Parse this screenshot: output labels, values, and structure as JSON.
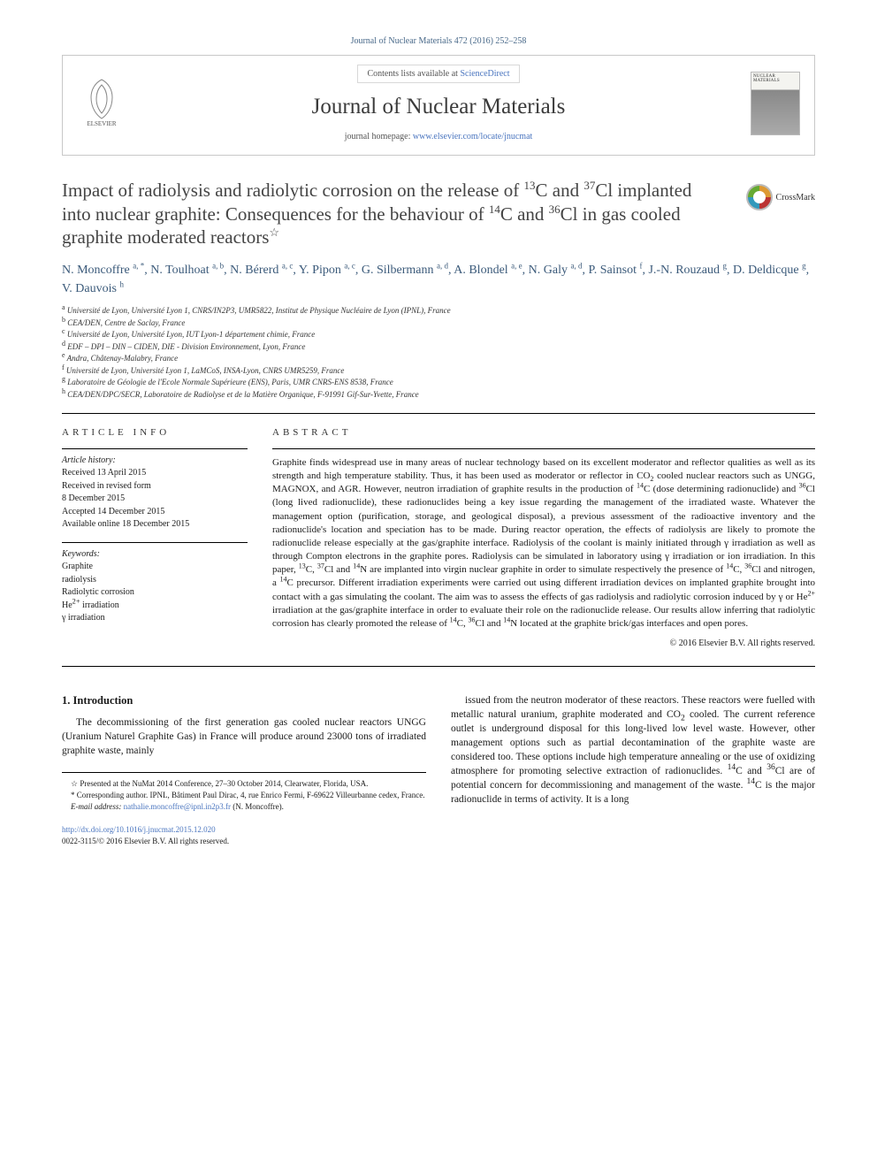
{
  "citation": "Journal of Nuclear Materials 472 (2016) 252–258",
  "header": {
    "contents_prefix": "Contents lists available at ",
    "contents_link": "ScienceDirect",
    "journal_name": "Journal of Nuclear Materials",
    "homepage_prefix": "journal homepage: ",
    "homepage_url": "www.elsevier.com/locate/jnucmat",
    "publisher_label": "ELSEVIER",
    "cover_label": "NUCLEAR MATERIALS"
  },
  "crossmark_label": "CrossMark",
  "title_html": "Impact of radiolysis and radiolytic corrosion on the release of <sup>13</sup>C and <sup>37</sup>Cl implanted into nuclear graphite: Consequences for the behaviour of <sup>14</sup>C and <sup>36</sup>Cl in gas cooled graphite moderated reactors<sup>☆</sup>",
  "authors_html": "N. Moncoffre <sup>a, *</sup>, N. Toulhoat <sup>a, b</sup>, N. Bérerd <sup>a, c</sup>, Y. Pipon <sup>a, c</sup>, G. Silbermann <sup>a, d</sup>, A. Blondel <sup>a, e</sup>, N. Galy <sup>a, d</sup>, P. Sainsot <sup>f</sup>, J.-N. Rouzaud <sup>g</sup>, D. Deldicque <sup>g</sup>, V. Dauvois <sup>h</sup>",
  "affiliations": [
    {
      "key": "a",
      "text": "Université de Lyon, Université Lyon 1, CNRS/IN2P3, UMR5822, Institut de Physique Nucléaire de Lyon (IPNL), France"
    },
    {
      "key": "b",
      "text": "CEA/DEN, Centre de Saclay, France"
    },
    {
      "key": "c",
      "text": "Université de Lyon, Université Lyon, IUT Lyon-1 département chimie, France"
    },
    {
      "key": "d",
      "text": "EDF – DPI – DIN – CIDEN, DIE - Division Environnement, Lyon, France"
    },
    {
      "key": "e",
      "text": "Andra, Châtenay-Malabry, France"
    },
    {
      "key": "f",
      "text": "Université de Lyon, Université Lyon 1, LaMCoS, INSA-Lyon, CNRS UMR5259, France"
    },
    {
      "key": "g",
      "text": "Laboratoire de Géologie de l'Ecole Normale Supérieure (ENS), Paris, UMR CNRS-ENS 8538, France"
    },
    {
      "key": "h",
      "text": "CEA/DEN/DPC/SECR, Laboratoire de Radiolyse et de la Matière Organique, F-91991 Gif-Sur-Yvette, France"
    }
  ],
  "article_info": {
    "heading": "ARTICLE INFO",
    "history_label": "Article history:",
    "history": [
      "Received 13 April 2015",
      "Received in revised form",
      "8 December 2015",
      "Accepted 14 December 2015",
      "Available online 18 December 2015"
    ],
    "keywords_label": "Keywords:",
    "keywords": [
      "Graphite",
      "radiolysis",
      "Radiolytic corrosion",
      "He2+ irradiation",
      "γ irradiation"
    ]
  },
  "abstract": {
    "heading": "ABSTRACT",
    "text_html": "Graphite finds widespread use in many areas of nuclear technology based on its excellent moderator and reflector qualities as well as its strength and high temperature stability. Thus, it has been used as moderator or reflector in CO<sub>2</sub> cooled nuclear reactors such as UNGG, MAGNOX, and AGR. However, neutron irradiation of graphite results in the production of <sup>14</sup>C (dose determining radionuclide) and <sup>36</sup>Cl (long lived radionuclide), these radionuclides being a key issue regarding the management of the irradiated waste. Whatever the management option (purification, storage, and geological disposal), a previous assessment of the radioactive inventory and the radionuclide's location and speciation has to be made. During reactor operation, the effects of radiolysis are likely to promote the radionuclide release especially at the gas/graphite interface. Radiolysis of the coolant is mainly initiated through γ irradiation as well as through Compton electrons in the graphite pores. Radiolysis can be simulated in laboratory using γ irradiation or ion irradiation. In this paper, <sup>13</sup>C, <sup>37</sup>Cl and <sup>14</sup>N are implanted into virgin nuclear graphite in order to simulate respectively the presence of <sup>14</sup>C, <sup>36</sup>Cl and nitrogen, a <sup>14</sup>C precursor. Different irradiation experiments were carried out using different irradiation devices on implanted graphite brought into contact with a gas simulating the coolant. The aim was to assess the effects of gas radiolysis and radiolytic corrosion induced by γ or He<sup>2+</sup> irradiation at the gas/graphite interface in order to evaluate their role on the radionuclide release. Our results allow inferring that radiolytic corrosion has clearly promoted the release of <sup>14</sup>C, <sup>36</sup>Cl and <sup>14</sup>N located at the graphite brick/gas interfaces and open pores.",
    "copyright": "© 2016 Elsevier B.V. All rights reserved."
  },
  "body": {
    "section_heading": "1. Introduction",
    "col1_html": "The decommissioning of the first generation gas cooled nuclear reactors UNGG (Uranium Naturel Graphite Gas) in France will produce around 23000 tons of irradiated graphite waste, mainly",
    "col2_html": "issued from the neutron moderator of these reactors. These reactors were fuelled with metallic natural uranium, graphite moderated and CO<sub>2</sub> cooled. The current reference outlet is underground disposal for this long-lived low level waste. However, other management options such as partial decontamination of the graphite waste are considered too. These options include high temperature annealing or the use of oxidizing atmosphere for promoting selective extraction of radionuclides. <sup>14</sup>C and <sup>36</sup>Cl are of potential concern for decommissioning and management of the waste. <sup>14</sup>C is the major radionuclide in terms of activity. It is a long"
  },
  "footnotes": {
    "star": "☆ Presented at the NuMat 2014 Conference, 27–30 October 2014, Clearwater, Florida, USA.",
    "corr": "* Corresponding author. IPNL, Bâtiment Paul Dirac, 4, rue Enrico Fermi, F-69622 Villeurbanne cedex, France.",
    "email_label": "E-mail address: ",
    "email": "nathalie.moncoffre@ipnl.in2p3.fr",
    "email_suffix": " (N. Moncoffre)."
  },
  "doi": {
    "url": "http://dx.doi.org/10.1016/j.jnucmat.2015.12.020",
    "issn": "0022-3115/© 2016 Elsevier B.V. All rights reserved."
  },
  "colors": {
    "link": "#4a75bf",
    "text": "#1a1a1a",
    "heading": "#444444",
    "author": "#3b5a7a",
    "border": "#c8c8c8"
  },
  "typography": {
    "body_pt": 11.5,
    "title_pt": 21,
    "journal_pt": 25,
    "small_pt": 10,
    "footnote_pt": 9,
    "font_family": "Georgia, 'Times New Roman', serif"
  }
}
